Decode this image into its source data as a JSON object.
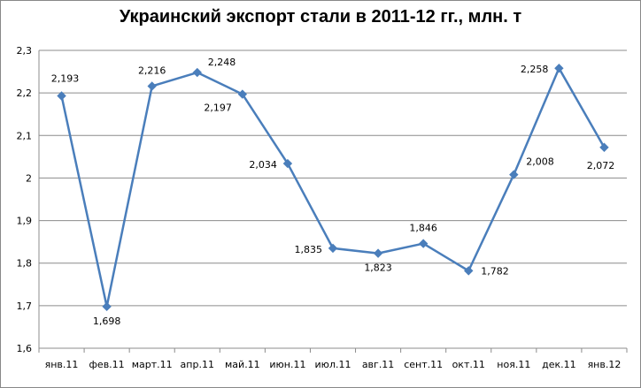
{
  "chart_data": {
    "type": "line",
    "title": "Украинский экспорт стали в 2011-12 гг., млн. т",
    "xlabel": "",
    "ylabel": "",
    "categories": [
      "янв.11",
      "фев.11",
      "март.11",
      "апр.11",
      "май.11",
      "июн.11",
      "июл.11",
      "авг.11",
      "сент.11",
      "окт.11",
      "ноя.11",
      "дек.11",
      "янв.12"
    ],
    "series": [
      {
        "values": [
          2.193,
          1.698,
          2.216,
          2.248,
          2.197,
          2.034,
          1.835,
          1.823,
          1.846,
          1.782,
          2.008,
          2.258,
          2.072
        ],
        "data_labels": [
          "2,193",
          "1,698",
          "2,216",
          "2,248",
          "2,197",
          "2,034",
          "1,835",
          "1,823",
          "1,846",
          "1,782",
          "2,008",
          "2,258",
          "2,072"
        ],
        "color": "#4a7ebb",
        "marker": "diamond"
      }
    ],
    "ylim": [
      1.6,
      2.3
    ],
    "yticks": [
      1.6,
      1.7,
      1.8,
      1.9,
      2.0,
      2.1,
      2.2,
      2.3
    ],
    "ytick_labels": [
      "1,6",
      "1,7",
      "1,8",
      "1,9",
      "2",
      "2,1",
      "2,2",
      "2,3"
    ],
    "grid": true,
    "gridline_color": "#8c8c8c",
    "legend": "none"
  }
}
